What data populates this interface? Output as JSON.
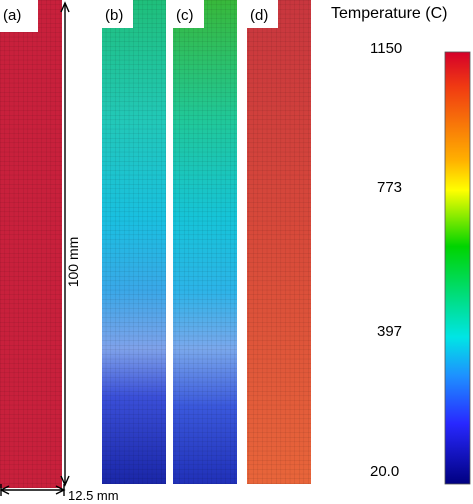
{
  "figure": {
    "panels": [
      {
        "label": "(a)",
        "field": "uniform_hot"
      },
      {
        "label": "(b)",
        "field": "gradient_b"
      },
      {
        "label": "(c)",
        "field": "gradient_c"
      },
      {
        "label": "(d)",
        "field": "warm"
      }
    ],
    "dimensions": {
      "height_label": "100 mm",
      "width_label": "12.5 mm"
    },
    "colorbar": {
      "title": "Temperature (C)",
      "ticks": [
        "1150",
        "773",
        "397",
        "20.0"
      ],
      "scale": [
        "#d5002a",
        "#f03a12",
        "#ffb000",
        "#ffff00",
        "#00d400",
        "#00e5e5",
        "#1e90ff",
        "#2828ff",
        "#000080"
      ]
    },
    "colors": {
      "panel_a": "#c8203c",
      "panel_d_top": "#c8383c",
      "panel_d_bottom": "#e85a3a",
      "mesh_line": "#000000"
    }
  }
}
